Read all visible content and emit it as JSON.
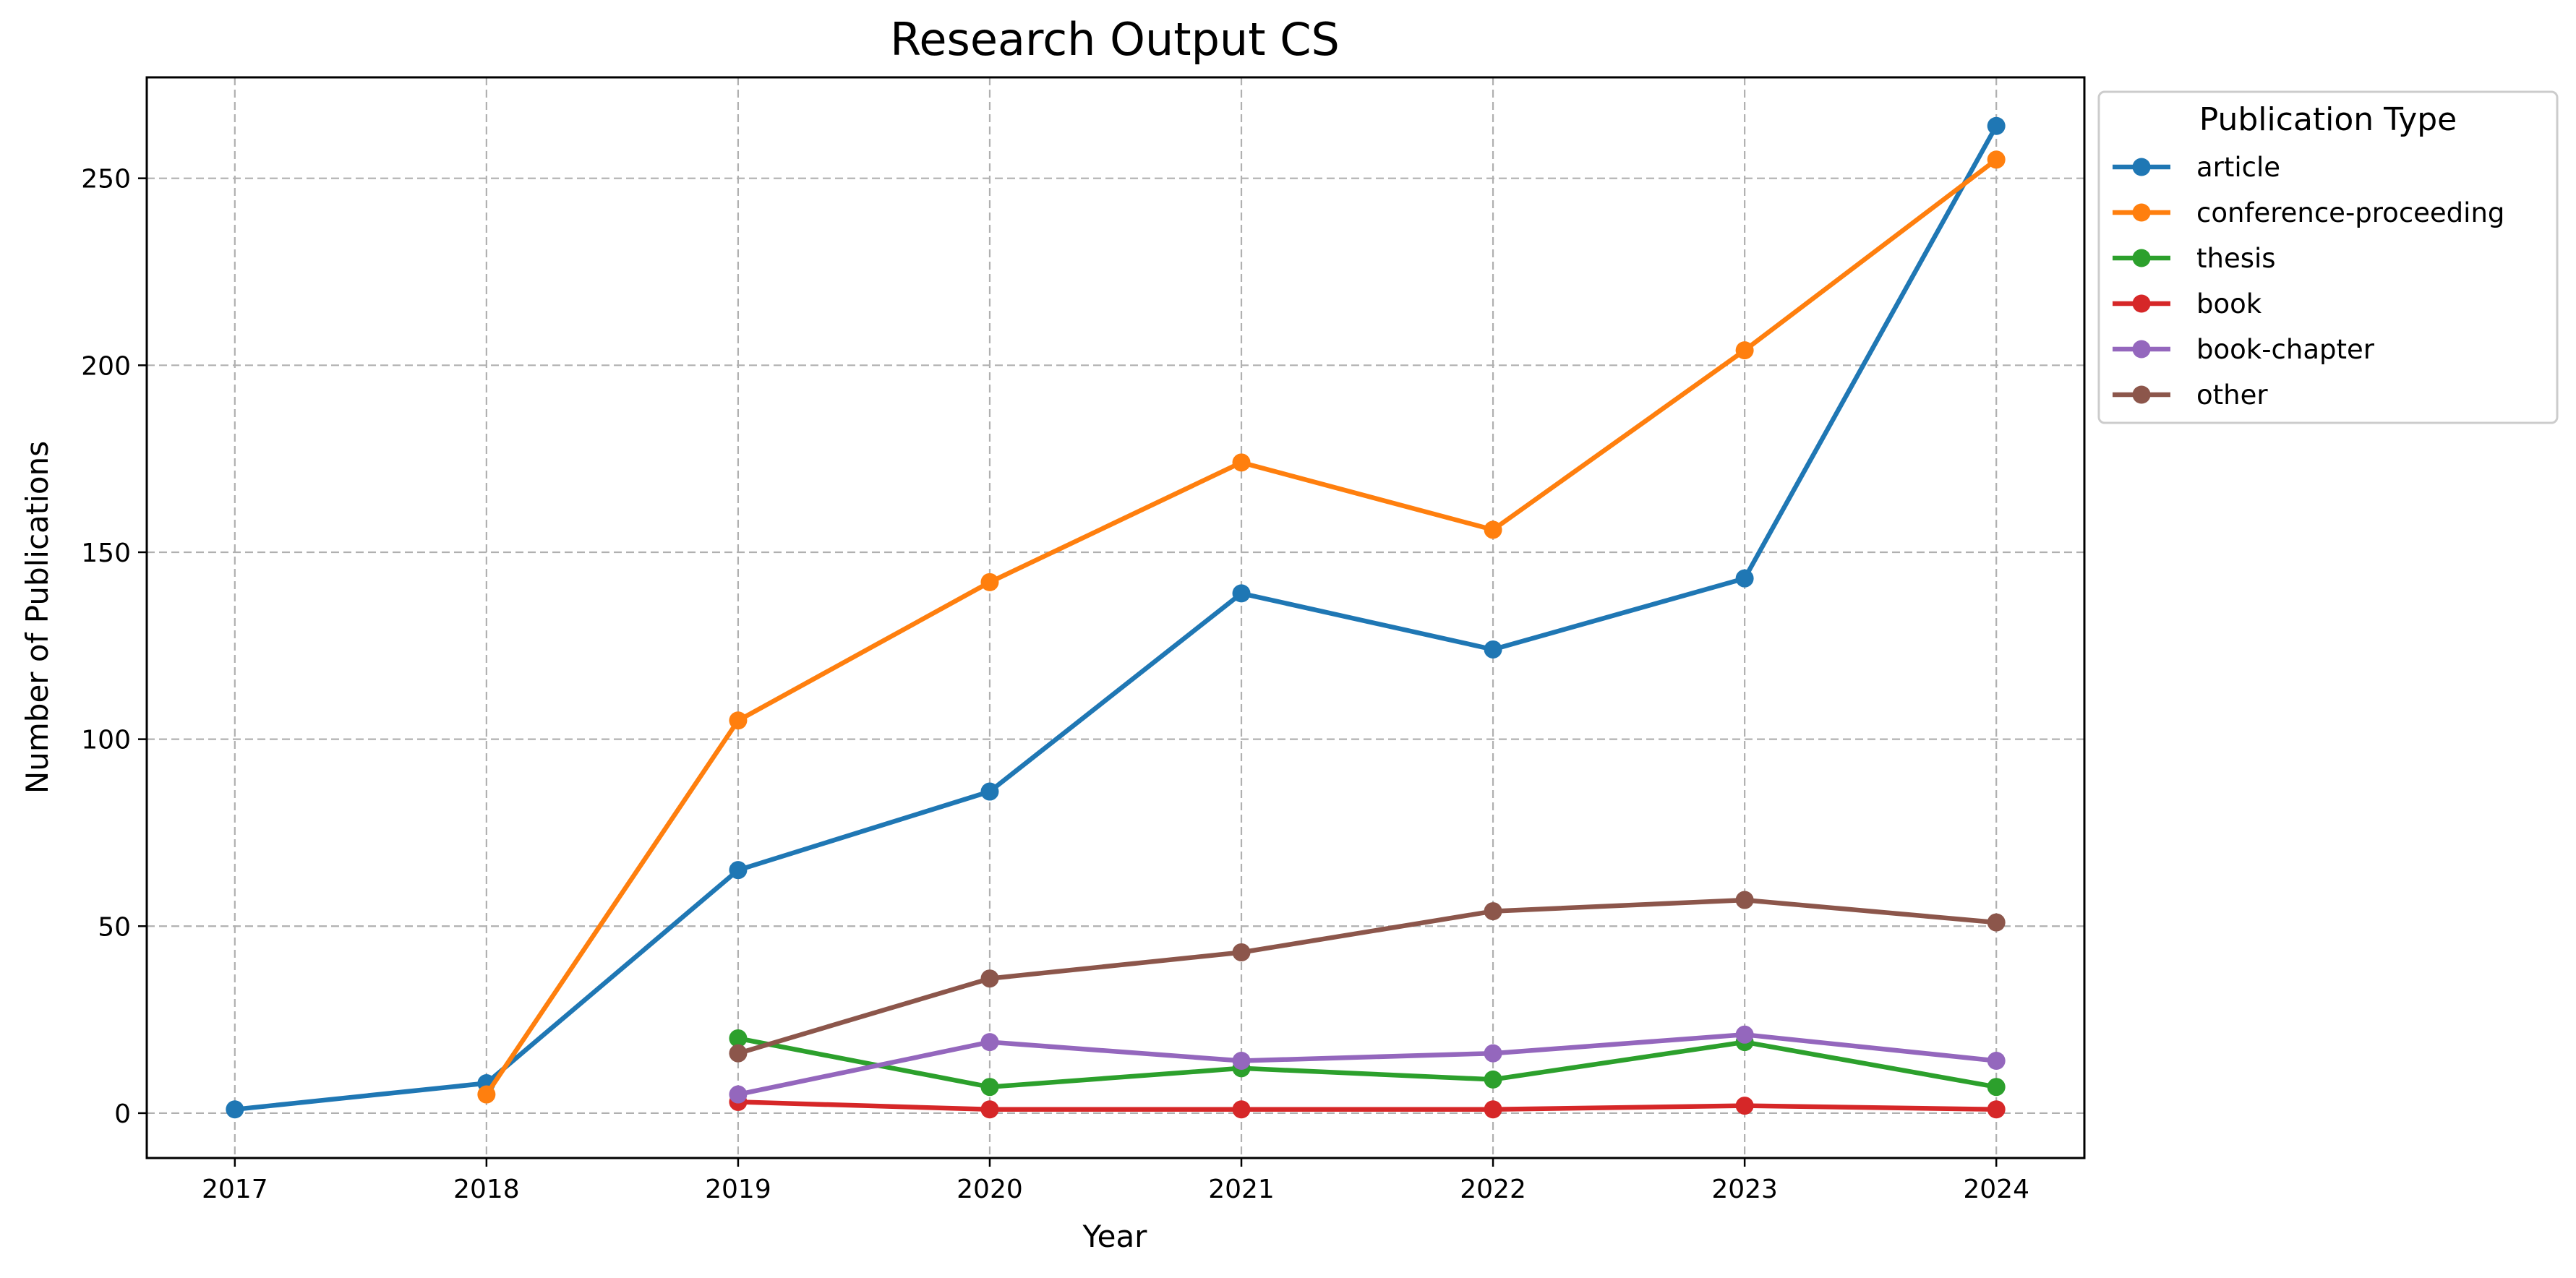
{
  "chart_data": {
    "type": "line",
    "title": "Research Output CS",
    "xlabel": "Year",
    "ylabel": "Number of Publications",
    "x": [
      2017,
      2018,
      2019,
      2020,
      2021,
      2022,
      2023,
      2024
    ],
    "xlim": [
      2016.65,
      2024.35
    ],
    "ylim": [
      -12,
      277
    ],
    "yticks": [
      0,
      50,
      100,
      150,
      200,
      250
    ],
    "grid": true,
    "legend": {
      "title": "Publication Type",
      "placement": "outside-top-right"
    },
    "series": [
      {
        "name": "article",
        "color": "#1f77b4",
        "x": [
          2017,
          2018,
          2019,
          2020,
          2021,
          2022,
          2023,
          2024
        ],
        "values": [
          1,
          8,
          65,
          86,
          139,
          124,
          143,
          264
        ]
      },
      {
        "name": "conference-proceeding",
        "color": "#ff7f0e",
        "x": [
          2018,
          2019,
          2020,
          2021,
          2022,
          2023,
          2024
        ],
        "values": [
          5,
          105,
          142,
          174,
          156,
          204,
          255
        ]
      },
      {
        "name": "thesis",
        "color": "#2ca02c",
        "x": [
          2019,
          2020,
          2021,
          2022,
          2023,
          2024
        ],
        "values": [
          20,
          7,
          12,
          9,
          19,
          7
        ]
      },
      {
        "name": "book",
        "color": "#d62728",
        "x": [
          2019,
          2020,
          2021,
          2022,
          2023,
          2024
        ],
        "values": [
          3,
          1,
          1,
          1,
          2,
          1
        ]
      },
      {
        "name": "book-chapter",
        "color": "#9467bd",
        "x": [
          2019,
          2020,
          2021,
          2022,
          2023,
          2024
        ],
        "values": [
          5,
          19,
          14,
          16,
          21,
          14
        ]
      },
      {
        "name": "other",
        "color": "#8c564b",
        "x": [
          2019,
          2020,
          2021,
          2022,
          2023,
          2024
        ],
        "values": [
          16,
          36,
          43,
          54,
          57,
          51
        ]
      }
    ]
  }
}
